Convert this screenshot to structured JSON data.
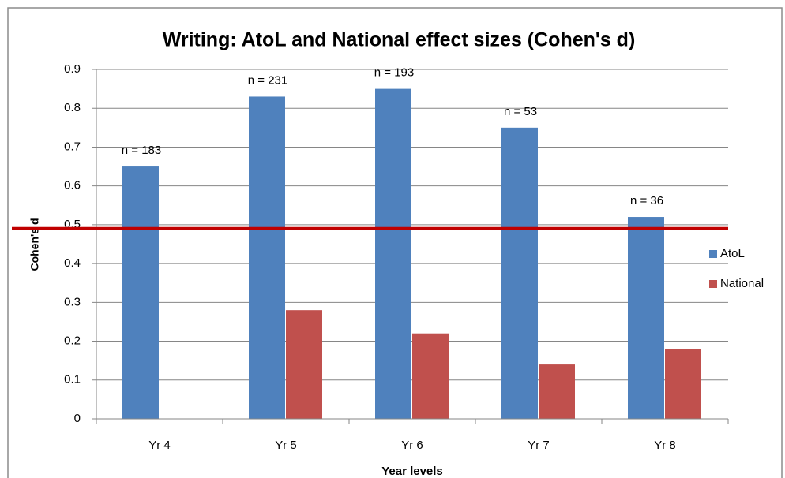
{
  "chart_data": {
    "type": "bar",
    "title": "Writing: AtoL and National effect sizes (Cohen's d)",
    "x_label": "Year levels",
    "y_label": "Cohen's d",
    "categories": [
      "Yr 4",
      "Yr 5",
      "Yr 6",
      "Yr 7",
      "Yr 8"
    ],
    "series": [
      {
        "name": "AtoL",
        "color": "#4f81bd",
        "values": [
          0.65,
          0.83,
          0.85,
          0.75,
          0.52
        ]
      },
      {
        "name": "National",
        "color": "#c0504d",
        "values": [
          null,
          0.28,
          0.22,
          0.14,
          0.18
        ]
      }
    ],
    "annotations": [
      "n = 183",
      "n = 231",
      "n = 193",
      "n = 53",
      "n = 36"
    ],
    "reference_line": {
      "value": 0.49,
      "color": "#c00000"
    },
    "ylim": [
      0,
      0.9
    ],
    "yticks": [
      0,
      0.1,
      0.2,
      0.3,
      0.4,
      0.5,
      0.6,
      0.7,
      0.8,
      0.9
    ],
    "grid": true,
    "legend": "right"
  }
}
